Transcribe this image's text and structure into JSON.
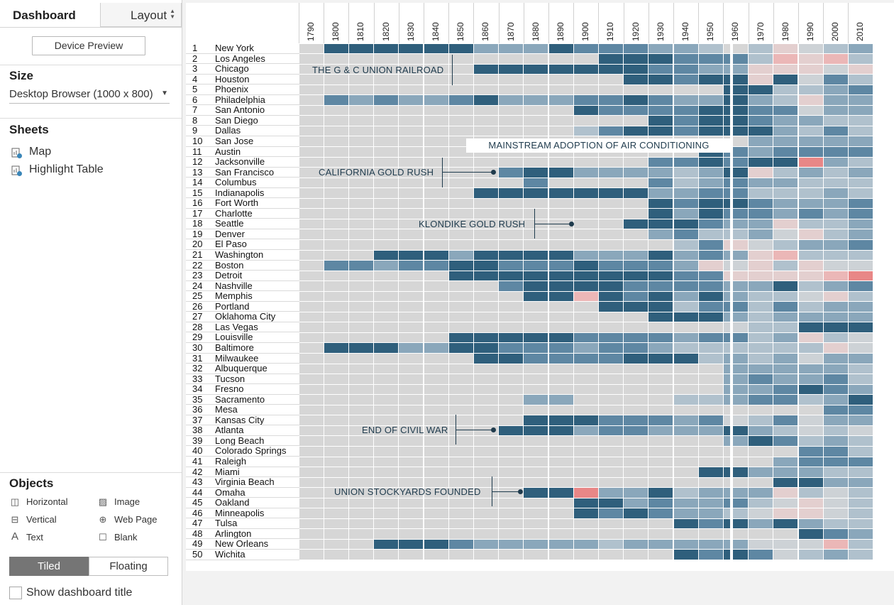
{
  "left_panel": {
    "tabs": {
      "dashboard": "Dashboard",
      "layout": "Layout"
    },
    "device_preview": "Device Preview",
    "size": {
      "title": "Size",
      "value": "Desktop Browser (1000 x 800)"
    },
    "sheets": {
      "title": "Sheets",
      "items": [
        "Map",
        "Highlight Table"
      ]
    },
    "objects": {
      "title": "Objects",
      "items": [
        {
          "label": "Horizontal",
          "icon": "horizontal-container-icon"
        },
        {
          "label": "Image",
          "icon": "image-icon"
        },
        {
          "label": "Vertical",
          "icon": "vertical-container-icon"
        },
        {
          "label": "Web Page",
          "icon": "globe-icon"
        },
        {
          "label": "Text",
          "icon": "text-icon"
        },
        {
          "label": "Blank",
          "icon": "blank-icon"
        }
      ]
    },
    "tiled": "Tiled",
    "floating": "Floating",
    "show_dashboard_title": "Show dashboard title"
  },
  "heatmap": {
    "years": [
      "1790",
      "1800",
      "1810",
      "1820",
      "1830",
      "1840",
      "1850",
      "1860",
      "1870",
      "1880",
      "1890",
      "1900",
      "1910",
      "1920",
      "1930",
      "1940",
      "1950",
      "1960",
      "1970",
      "1980",
      "1990",
      "2000",
      "2010"
    ],
    "cities": [
      "New York",
      "Los Angeles",
      "Chicago",
      "Houston",
      "Phoenix",
      "Philadelphia",
      "San Antonio",
      "San Diego",
      "Dallas",
      "San Jose",
      "Austin",
      "Jacksonville",
      "San Francisco",
      "Columbus",
      "Indianapolis",
      "Fort Worth",
      "Charlotte",
      "Seattle",
      "Denver",
      "El Paso",
      "Washington",
      "Boston",
      "Detroit",
      "Nashville",
      "Memphis",
      "Portland",
      "Oklahoma City",
      "Las Vegas",
      "Louisville",
      "Baltimore",
      "Milwaukee",
      "Albuquerque",
      "Tucson",
      "Fresno",
      "Sacramento",
      "Mesa",
      "Kansas City",
      "Atlanta",
      "Long Beach",
      "Colorado Springs",
      "Raleigh",
      "Miami",
      "Virginia Beach",
      "Omaha",
      "Oakland",
      "Minneapolis",
      "Tulsa",
      "Arlington",
      "New Orleans",
      "Wichita"
    ],
    "palette": {
      "0": "#d6d6d6",
      "1": "#2f5f7c",
      "2": "#5e87a3",
      "3": "#8aa7bb",
      "4": "#b0c1cd",
      "5": "#cdd2d6",
      "6": "#e3cfcf",
      "7": "#ebb7b7",
      "8": "#e88787"
    },
    "levels": [
      "01111113331222334046543",
      "00000000000011122247674",
      "00000001111111223366656",
      "00000000000001121161524",
      "00000000000000000114432",
      "02323321333221233134633",
      "00000000000122221122533",
      "00000000000000121123344",
      "00000000000421121113424",
      "00000000000000000033333",
      "00000000000000001232222",
      "00000000000000221211834",
      "00000000211333343164343",
      "00000000020000243233444",
      "00000001111111332244434",
      "00000000000000121123332",
      "00000000000000131223232",
      "00000000000001112336443",
      "00000000000000324435643",
      "00000000000000042654332",
      "00011131111333132367444",
      "02232211222122236564655",
      "00000011111111122666678",
      "00000000211112222331432",
      "00000000011712131344564",
      "00000000000011142242433",
      "00000000000000111343333",
      "00000000000000000544111",
      "00000011111222232243645",
      "01113311222322344444465",
      "00000001122221114343533",
      "00000000000000000333334",
      "00000000000000000323324",
      "00000000000000000332123",
      "00000000033000044322431",
      "00000000000000000000022",
      "00000000011122232542533",
      "00000000111322333134545",
      "00000000000000000312434",
      "00000000000000000000224",
      "00000000000000000003222",
      "00000000000000001133344",
      "00000000000000000001133",
      "00000000011833143336454",
      "00000000000113233245654",
      "00000000000121233456654",
      "00000000000000012131344",
      "00000000000000000000123",
      "00011123333343333355574",
      "00000000000000012125434"
    ]
  },
  "annotations": [
    "THE G & C UNION RAILROAD",
    "MAINSTREAM ADOPTION OF AIR CONDITIONING",
    "CALIFORNIA GOLD RUSH",
    "KLONDIKE GOLD RUSH",
    "END OF CIVIL WAR",
    "UNION STOCKYARDS FOUNDED"
  ]
}
